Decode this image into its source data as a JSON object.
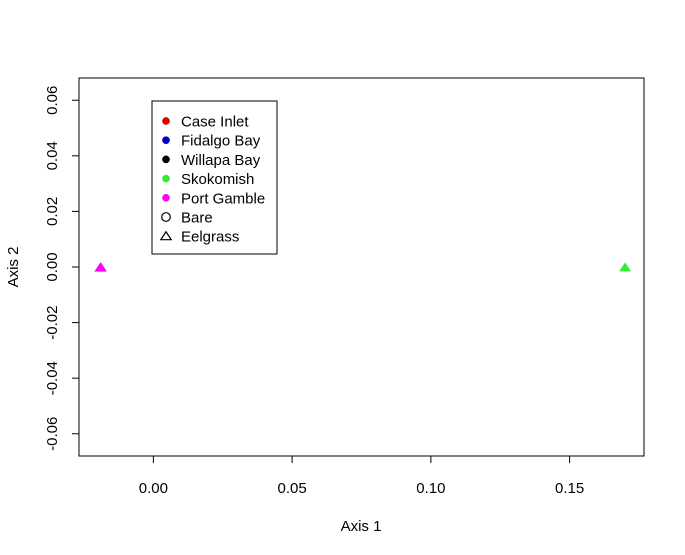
{
  "chart_data": {
    "type": "scatter",
    "title": "",
    "xlabel": "Axis 1",
    "ylabel": "Axis 2",
    "xlim": [
      -0.0268,
      0.1768
    ],
    "ylim": [
      -0.068,
      0.068
    ],
    "x_ticks": [
      0.0,
      0.05,
      0.1,
      0.15
    ],
    "x_tick_labels": [
      "0.00",
      "0.05",
      "0.10",
      "0.15"
    ],
    "y_ticks": [
      -0.06,
      -0.04,
      -0.02,
      0.0,
      0.02,
      0.04,
      0.06
    ],
    "y_tick_labels": [
      "-0.06",
      "-0.04",
      "-0.02",
      "0.00",
      "0.02",
      "0.04",
      "0.06"
    ],
    "grid": false,
    "legend_position": "top-left",
    "legend": [
      {
        "label": "Case Inlet",
        "color": "#DF0000",
        "marker": "dot"
      },
      {
        "label": "Fidalgo Bay",
        "color": "#0000CD",
        "marker": "dot"
      },
      {
        "label": "Willapa Bay",
        "color": "#000000",
        "marker": "dot"
      },
      {
        "label": "Skokomish",
        "color": "#33EE33",
        "marker": "dot"
      },
      {
        "label": "Port Gamble",
        "color": "#FF00FF",
        "marker": "dot"
      },
      {
        "label": "Bare",
        "color": "#000000",
        "marker": "open-circle"
      },
      {
        "label": "Eelgrass",
        "color": "#000000",
        "marker": "open-triangle"
      }
    ],
    "points": [
      {
        "x": -0.019,
        "y": 0.0,
        "site": "Case Inlet",
        "habitat": "Eelgrass",
        "color": "#DF0000"
      },
      {
        "x": -0.019,
        "y": 0.0,
        "site": "Fidalgo Bay",
        "habitat": "Eelgrass",
        "color": "#0000CD"
      },
      {
        "x": -0.019,
        "y": 0.0,
        "site": "Willapa Bay",
        "habitat": "Eelgrass",
        "color": "#000000"
      },
      {
        "x": -0.019,
        "y": 0.0,
        "site": "Port Gamble",
        "habitat": "Eelgrass",
        "color": "#FF00FF"
      },
      {
        "x": 0.17,
        "y": 0.0,
        "site": "Skokomish",
        "habitat": "Eelgrass",
        "color": "#33EE33"
      }
    ]
  }
}
